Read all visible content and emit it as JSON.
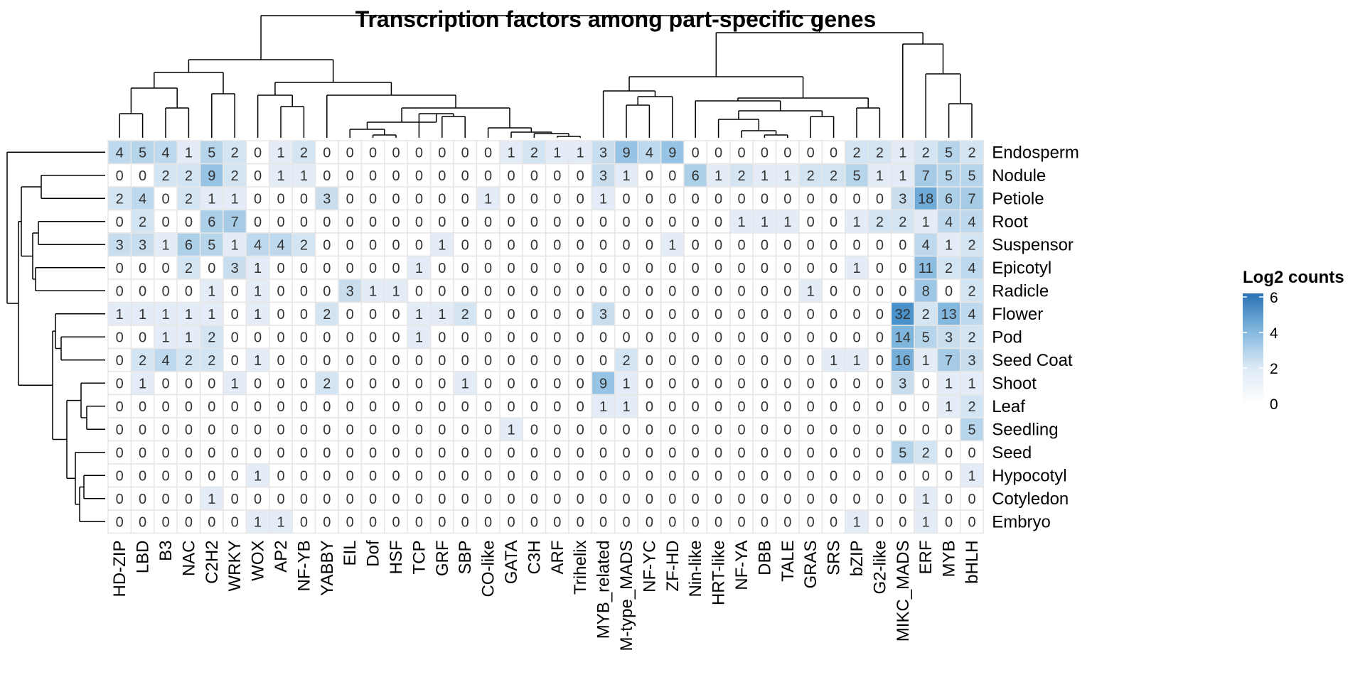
{
  "chart_data": {
    "type": "heatmap",
    "title": "Transcription factors among part-specific genes",
    "legend": {
      "title": "Log2 counts",
      "ticks": [
        0,
        2,
        4,
        6
      ],
      "range": [
        0,
        6.2
      ],
      "colors": [
        "#ffffff",
        "#dde9f5",
        "#bad7ec",
        "#87bbe0",
        "#4a93cc",
        "#2a71b5"
      ],
      "placement": "right"
    },
    "columns": [
      "HD-ZIP",
      "LBD",
      "B3",
      "NAC",
      "C2H2",
      "WRKY",
      "WOX",
      "AP2",
      "NF-YB",
      "YABBY",
      "EIL",
      "Dof",
      "HSF",
      "TCP",
      "GRF",
      "SBP",
      "CO-like",
      "GATA",
      "C3H",
      "ARF",
      "Trihelix",
      "MYB_related",
      "M-type_MADS",
      "NF-YC",
      "ZF-HD",
      "Nin-like",
      "HRT-like",
      "NF-YA",
      "DBB",
      "TALE",
      "GRAS",
      "SRS",
      "bZIP",
      "G2-like",
      "MIKC_MADS",
      "ERF",
      "MYB",
      "bHLH"
    ],
    "rows": [
      "Endosperm",
      "Nodule",
      "Petiole",
      "Root",
      "Suspensor",
      "Epicotyl",
      "Radicle",
      "Flower",
      "Pod",
      "Seed Coat",
      "Shoot",
      "Leaf",
      "Seedling",
      "Seed",
      "Hypocotyl",
      "Cotyledon",
      "Embryo"
    ],
    "values": [
      [
        4,
        5,
        4,
        1,
        5,
        2,
        0,
        1,
        2,
        0,
        0,
        0,
        0,
        0,
        0,
        0,
        0,
        1,
        2,
        1,
        1,
        3,
        9,
        4,
        9,
        0,
        0,
        0,
        0,
        0,
        0,
        0,
        2,
        2,
        1,
        2,
        5,
        2
      ],
      [
        0,
        0,
        2,
        2,
        9,
        2,
        0,
        1,
        1,
        0,
        0,
        0,
        0,
        0,
        0,
        0,
        0,
        0,
        0,
        0,
        0,
        3,
        1,
        0,
        0,
        6,
        1,
        2,
        1,
        1,
        2,
        2,
        5,
        1,
        1,
        7,
        5,
        5
      ],
      [
        2,
        4,
        0,
        2,
        1,
        1,
        0,
        0,
        0,
        3,
        0,
        0,
        0,
        0,
        0,
        0,
        1,
        0,
        0,
        0,
        0,
        1,
        0,
        0,
        0,
        0,
        0,
        0,
        0,
        0,
        0,
        0,
        0,
        0,
        3,
        18,
        6,
        7
      ],
      [
        0,
        2,
        0,
        0,
        6,
        7,
        0,
        0,
        0,
        0,
        0,
        0,
        0,
        0,
        0,
        0,
        0,
        0,
        0,
        0,
        0,
        0,
        0,
        0,
        0,
        0,
        0,
        1,
        1,
        1,
        0,
        0,
        1,
        2,
        2,
        1,
        4,
        4
      ],
      [
        3,
        3,
        1,
        6,
        5,
        1,
        4,
        4,
        2,
        0,
        0,
        0,
        0,
        0,
        1,
        0,
        0,
        0,
        0,
        0,
        0,
        0,
        0,
        0,
        1,
        0,
        0,
        0,
        0,
        0,
        0,
        0,
        0,
        0,
        0,
        4,
        1,
        2
      ],
      [
        0,
        0,
        0,
        2,
        0,
        3,
        1,
        0,
        0,
        0,
        0,
        0,
        0,
        1,
        0,
        0,
        0,
        0,
        0,
        0,
        0,
        0,
        0,
        0,
        0,
        0,
        0,
        0,
        0,
        0,
        0,
        0,
        1,
        0,
        0,
        11,
        2,
        4
      ],
      [
        0,
        0,
        0,
        0,
        1,
        0,
        1,
        0,
        0,
        0,
        3,
        1,
        1,
        0,
        0,
        0,
        0,
        0,
        0,
        0,
        0,
        0,
        0,
        0,
        0,
        0,
        0,
        0,
        0,
        0,
        1,
        0,
        0,
        0,
        0,
        8,
        0,
        2
      ],
      [
        1,
        1,
        1,
        1,
        1,
        0,
        1,
        0,
        0,
        2,
        0,
        0,
        0,
        1,
        1,
        2,
        0,
        0,
        0,
        0,
        0,
        3,
        0,
        0,
        0,
        0,
        0,
        0,
        0,
        0,
        0,
        0,
        0,
        0,
        32,
        2,
        13,
        4
      ],
      [
        0,
        0,
        1,
        1,
        2,
        0,
        0,
        0,
        0,
        0,
        0,
        0,
        0,
        1,
        0,
        0,
        0,
        0,
        0,
        0,
        0,
        0,
        0,
        0,
        0,
        0,
        0,
        0,
        0,
        0,
        0,
        0,
        0,
        0,
        14,
        5,
        3,
        2
      ],
      [
        0,
        2,
        4,
        2,
        2,
        0,
        1,
        0,
        0,
        0,
        0,
        0,
        0,
        0,
        0,
        0,
        0,
        0,
        0,
        0,
        0,
        0,
        2,
        0,
        0,
        0,
        0,
        0,
        0,
        0,
        0,
        1,
        1,
        0,
        16,
        1,
        7,
        3
      ],
      [
        0,
        1,
        0,
        0,
        0,
        1,
        0,
        0,
        0,
        2,
        0,
        0,
        0,
        0,
        0,
        1,
        0,
        0,
        0,
        0,
        0,
        9,
        1,
        0,
        0,
        0,
        0,
        0,
        0,
        0,
        0,
        0,
        0,
        0,
        3,
        0,
        1,
        1
      ],
      [
        0,
        0,
        0,
        0,
        0,
        0,
        0,
        0,
        0,
        0,
        0,
        0,
        0,
        0,
        0,
        0,
        0,
        0,
        0,
        0,
        0,
        1,
        1,
        0,
        0,
        0,
        0,
        0,
        0,
        0,
        0,
        0,
        0,
        0,
        0,
        0,
        1,
        2
      ],
      [
        0,
        0,
        0,
        0,
        0,
        0,
        0,
        0,
        0,
        0,
        0,
        0,
        0,
        0,
        0,
        0,
        0,
        1,
        0,
        0,
        0,
        0,
        0,
        0,
        0,
        0,
        0,
        0,
        0,
        0,
        0,
        0,
        0,
        0,
        0,
        0,
        0,
        5
      ],
      [
        0,
        0,
        0,
        0,
        0,
        0,
        0,
        0,
        0,
        0,
        0,
        0,
        0,
        0,
        0,
        0,
        0,
        0,
        0,
        0,
        0,
        0,
        0,
        0,
        0,
        0,
        0,
        0,
        0,
        0,
        0,
        0,
        0,
        0,
        5,
        2,
        0,
        0
      ],
      [
        0,
        0,
        0,
        0,
        0,
        0,
        1,
        0,
        0,
        0,
        0,
        0,
        0,
        0,
        0,
        0,
        0,
        0,
        0,
        0,
        0,
        0,
        0,
        0,
        0,
        0,
        0,
        0,
        0,
        0,
        0,
        0,
        0,
        0,
        0,
        0,
        0,
        1
      ],
      [
        0,
        0,
        0,
        0,
        1,
        0,
        0,
        0,
        0,
        0,
        0,
        0,
        0,
        0,
        0,
        0,
        0,
        0,
        0,
        0,
        0,
        0,
        0,
        0,
        0,
        0,
        0,
        0,
        0,
        0,
        0,
        0,
        0,
        0,
        0,
        1,
        0,
        0
      ],
      [
        0,
        0,
        0,
        0,
        0,
        0,
        1,
        1,
        0,
        0,
        0,
        0,
        0,
        0,
        0,
        0,
        0,
        0,
        0,
        0,
        0,
        0,
        0,
        0,
        0,
        0,
        0,
        0,
        0,
        0,
        0,
        0,
        1,
        0,
        0,
        1,
        0,
        0
      ]
    ]
  }
}
